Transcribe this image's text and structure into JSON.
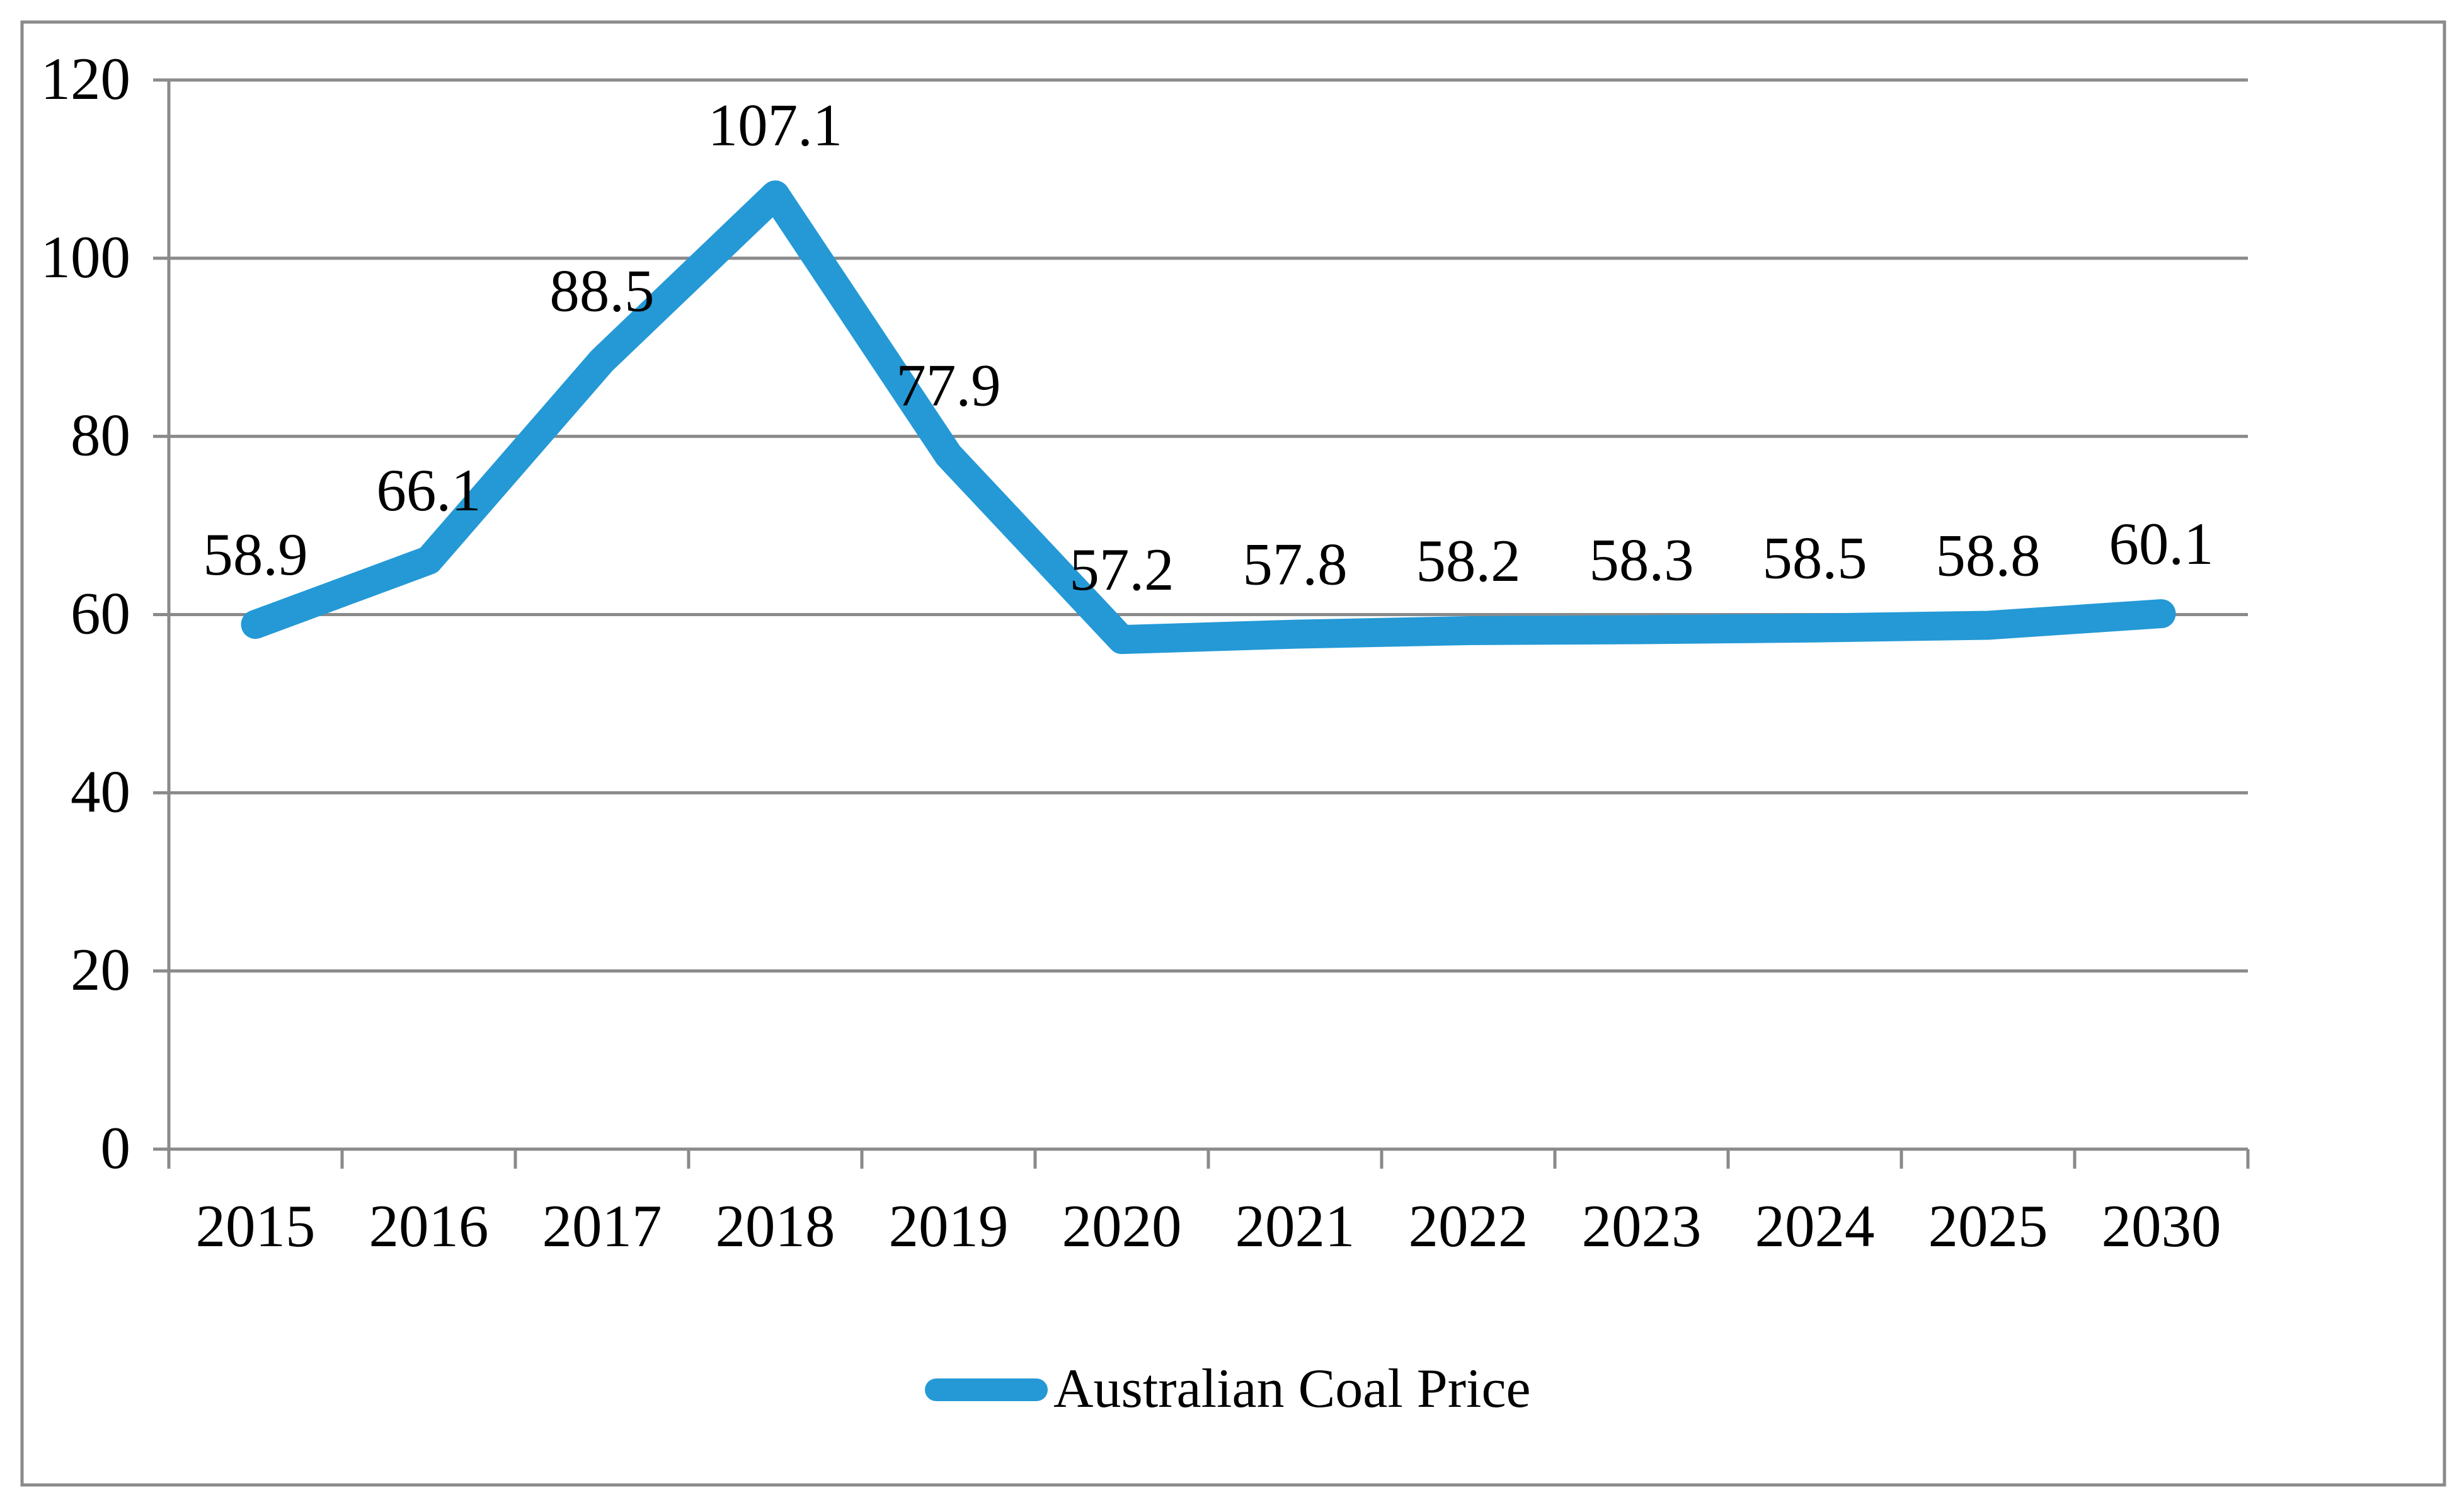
{
  "figure": {
    "background": "#ffffff",
    "border_color": "#8a8a8a"
  },
  "chart_data": {
    "type": "line",
    "title": "",
    "categories": [
      "2015",
      "2016",
      "2017",
      "2018",
      "2019",
      "2020",
      "2021",
      "2022",
      "2023",
      "2024",
      "2025",
      "2030"
    ],
    "series": [
      {
        "name": "Australian Coal Price",
        "values": [
          58.9,
          66.1,
          88.5,
          107.1,
          77.9,
          57.2,
          57.8,
          58.2,
          58.3,
          58.5,
          58.8,
          60.1
        ],
        "color": "#2499d6"
      }
    ],
    "data_labels": [
      "58.9",
      "66.1",
      "88.5",
      "107.1",
      "77.9",
      "57.2",
      "57.8",
      "58.2",
      "58.3",
      "58.5",
      "58.8",
      "60.1"
    ],
    "ylim": [
      0,
      120
    ],
    "ytick_step": 20,
    "ytick_labels": [
      "0",
      "20",
      "40",
      "60",
      "80",
      "100",
      "120"
    ],
    "grid": true,
    "gridline_color": "#8a8a8a",
    "axis_color": "#8a8a8a",
    "text_color": "#000000",
    "legend": {
      "position": "bottom-center",
      "entries": [
        {
          "label": "Australian Coal Price",
          "marker": "thick-line",
          "marker_color": "#2499d6"
        }
      ]
    }
  }
}
